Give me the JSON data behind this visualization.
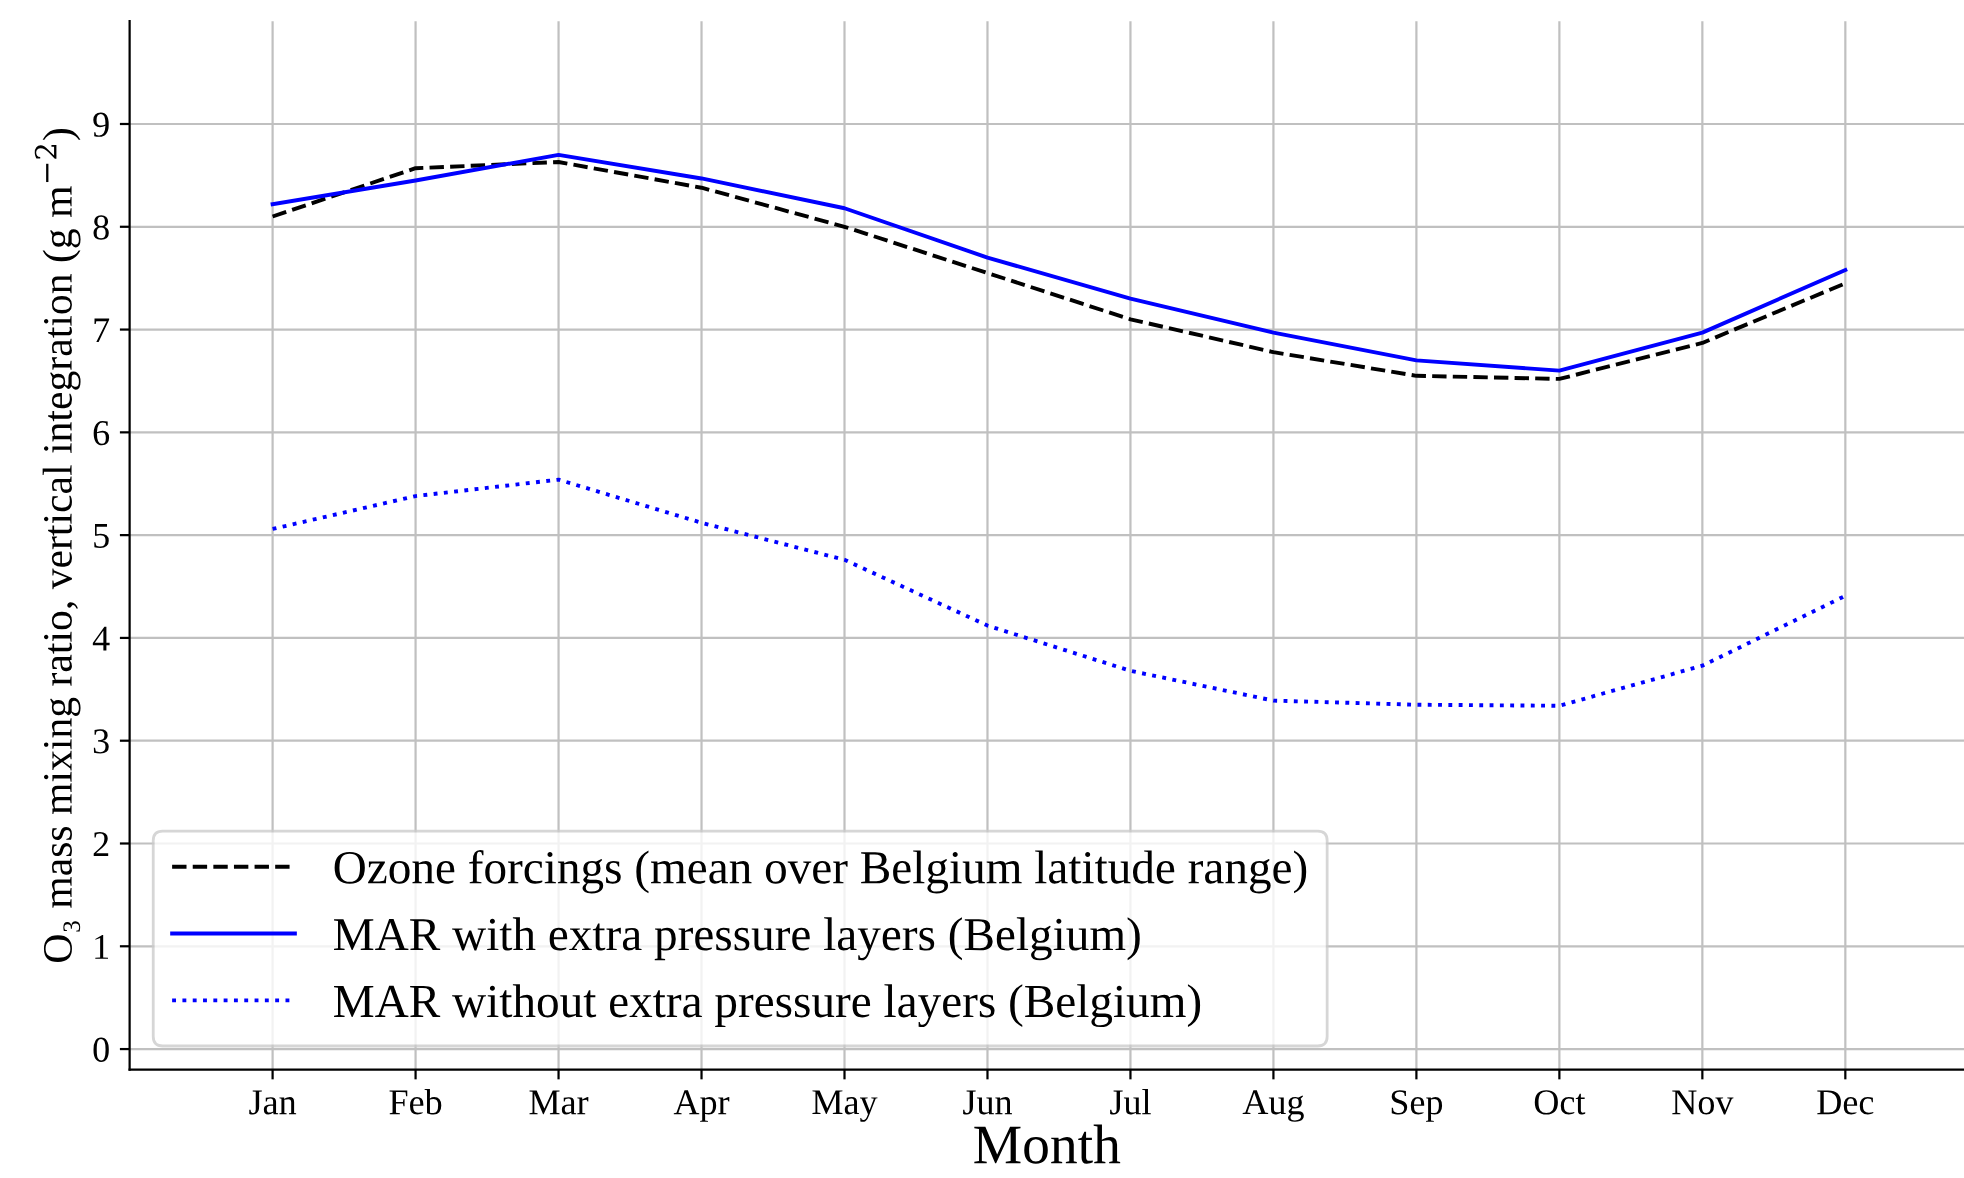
{
  "chart_data": {
    "type": "line",
    "xlabel": "Month",
    "ylabel": "O₃ mass mixing ratio, vertical integration (g m$^{−2}$)",
    "categories": [
      "Jan",
      "Feb",
      "Mar",
      "Apr",
      "May",
      "Jun",
      "Jul",
      "Aug",
      "Sep",
      "Oct",
      "Nov",
      "Dec"
    ],
    "ylim": [
      -0.2,
      10
    ],
    "yticks": [
      0,
      1,
      2,
      3,
      4,
      5,
      6,
      7,
      8,
      9
    ],
    "grid": true,
    "legend": "bottom left",
    "marker": "none",
    "series": [
      {
        "name": "Ozone forcings (mean over Belgium latitude range)",
        "color": "#000000",
        "line_style": "dashed",
        "values": [
          8.1,
          8.57,
          8.63,
          8.38,
          8.0,
          7.55,
          7.1,
          6.78,
          6.55,
          6.52,
          6.87,
          7.45
        ]
      },
      {
        "name": "MAR with extra pressure layers (Belgium)",
        "color": "#0000ff",
        "line_style": "solid",
        "values": [
          8.22,
          8.45,
          8.7,
          8.47,
          8.18,
          7.7,
          7.3,
          6.97,
          6.7,
          6.6,
          6.97,
          7.58
        ]
      },
      {
        "name": "MAR without extra pressure layers (Belgium)",
        "color": "#0000ff",
        "line_style": "dotted",
        "values": [
          5.06,
          5.38,
          5.54,
          5.12,
          4.76,
          4.12,
          3.68,
          3.39,
          3.35,
          3.34,
          3.73,
          4.41
        ]
      }
    ]
  }
}
